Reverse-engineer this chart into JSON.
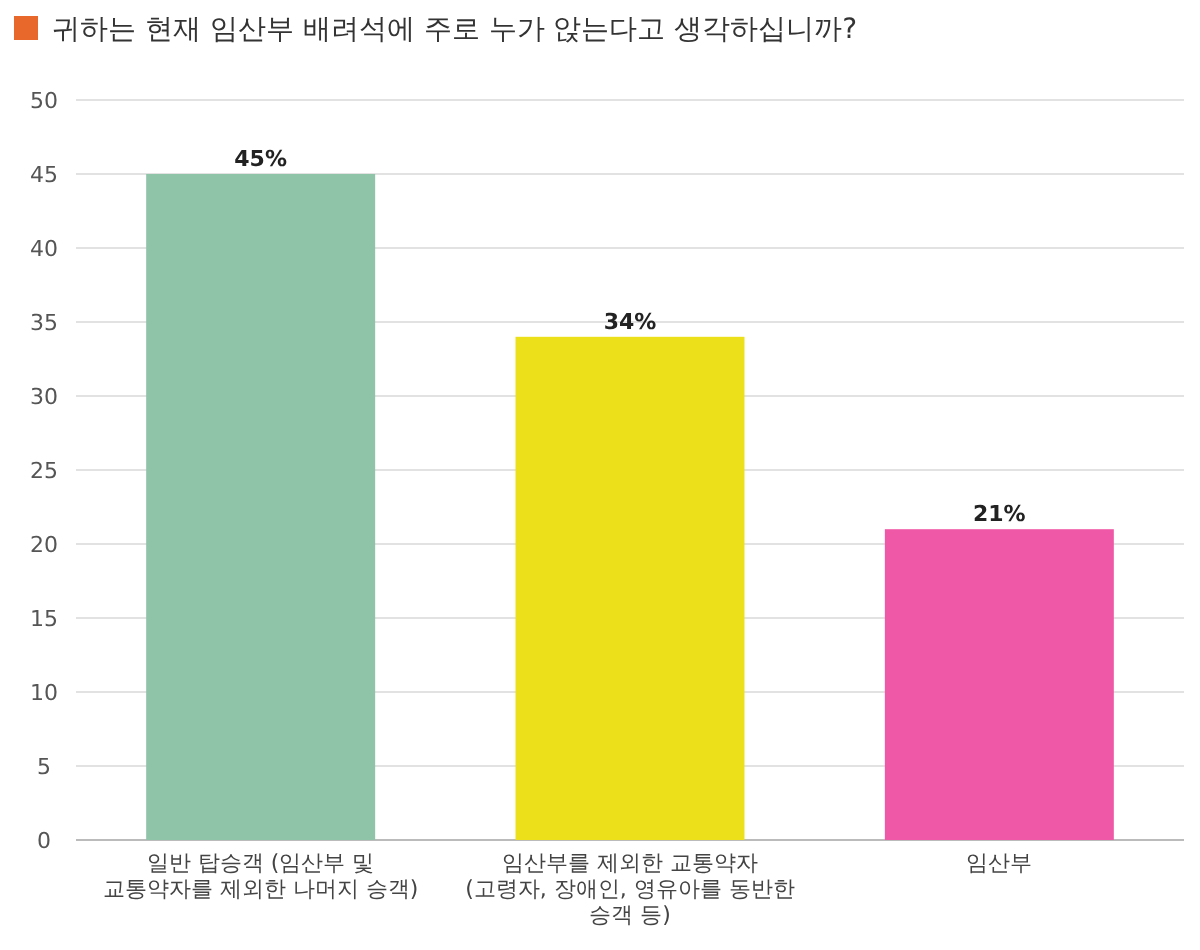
{
  "chart_data": {
    "type": "bar",
    "title": "귀하는 현재 임산부 배려석에 주로 누가 앉는다고 생각하십니까?",
    "categories": [
      "일반 탑승객 (임산부 및 교통약자를 제외한 나머지 승객)",
      "임산부를 제외한 교통약자 (고령자, 장애인, 영유아를 동반한 승객 등)",
      "임산부"
    ],
    "values": [
      45,
      34,
      21
    ],
    "colors": [
      "#8fc4a8",
      "#ebe01a",
      "#ef58a6"
    ],
    "value_labels": [
      "45%",
      "34%",
      "21%"
    ],
    "ylim": [
      0,
      50
    ],
    "yticks": [
      0,
      5,
      10,
      15,
      20,
      25,
      30,
      35,
      40,
      45,
      50
    ],
    "grid": "y"
  }
}
